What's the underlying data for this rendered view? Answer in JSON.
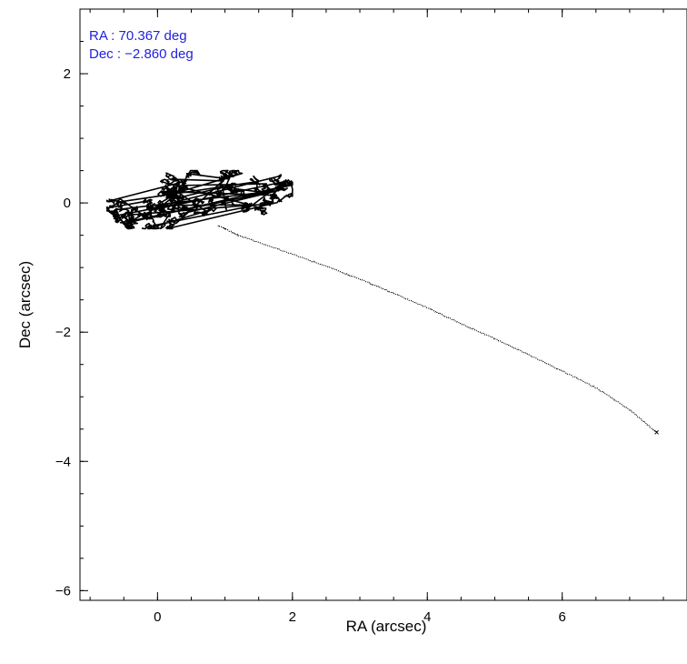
{
  "chart_data": {
    "type": "line",
    "title": "",
    "xlabel": "RA (arcsec)",
    "ylabel": "Dec (arcsec)",
    "xlim": [
      -1.15,
      7.85
    ],
    "ylim": [
      -6.15,
      3.0
    ],
    "x_ticks": [
      {
        "value": 0,
        "label": "0"
      },
      {
        "value": 2,
        "label": "2"
      },
      {
        "value": 4,
        "label": "4"
      },
      {
        "value": 6,
        "label": "6"
      }
    ],
    "y_ticks": [
      {
        "value": 2,
        "label": "2"
      },
      {
        "value": 0,
        "label": "0"
      },
      {
        "value": -2,
        "label": "−2"
      },
      {
        "value": -4,
        "label": "−4"
      },
      {
        "value": -6,
        "label": "−6"
      }
    ],
    "x_minor_step": 0.5,
    "y_minor_step": 0.5,
    "grid": false,
    "colors": {
      "line": "#000000",
      "annotation": "#1f1fe0",
      "axes": "#000000"
    },
    "annotations": [
      {
        "text": "RA : 70.367 deg"
      },
      {
        "text": "Dec : −2.860 deg"
      }
    ],
    "series": [
      {
        "values_x": [
          0.9,
          1.2,
          1.8,
          2.5,
          3.0,
          3.5,
          4.0,
          4.5,
          5.0,
          5.5,
          6.0,
          6.5,
          7.0,
          7.4
        ],
        "values_y": [
          -0.35,
          -0.5,
          -0.72,
          -0.98,
          -1.18,
          -1.4,
          -1.62,
          -1.87,
          -2.1,
          -2.35,
          -2.6,
          -2.86,
          -3.2,
          -3.55
        ]
      }
    ],
    "jitter_region": {
      "x_range": [
        -0.75,
        2.0
      ],
      "y_range": [
        -0.4,
        0.5
      ],
      "anchor_points": [
        [
          -0.7,
          -0.05
        ],
        [
          -0.5,
          -0.3
        ],
        [
          -0.3,
          0.25
        ],
        [
          -0.1,
          -0.15
        ],
        [
          0.05,
          0.3
        ],
        [
          0.1,
          -0.35
        ],
        [
          0.2,
          0.1
        ],
        [
          0.4,
          -0.1
        ],
        [
          0.5,
          0.5
        ],
        [
          0.6,
          0.05
        ],
        [
          0.8,
          -0.15
        ],
        [
          1.0,
          0.3
        ],
        [
          1.1,
          -0.15
        ],
        [
          1.3,
          0.0
        ],
        [
          1.5,
          0.2
        ],
        [
          1.6,
          -0.05
        ],
        [
          1.75,
          0.15
        ],
        [
          1.95,
          0.35
        ]
      ]
    }
  }
}
